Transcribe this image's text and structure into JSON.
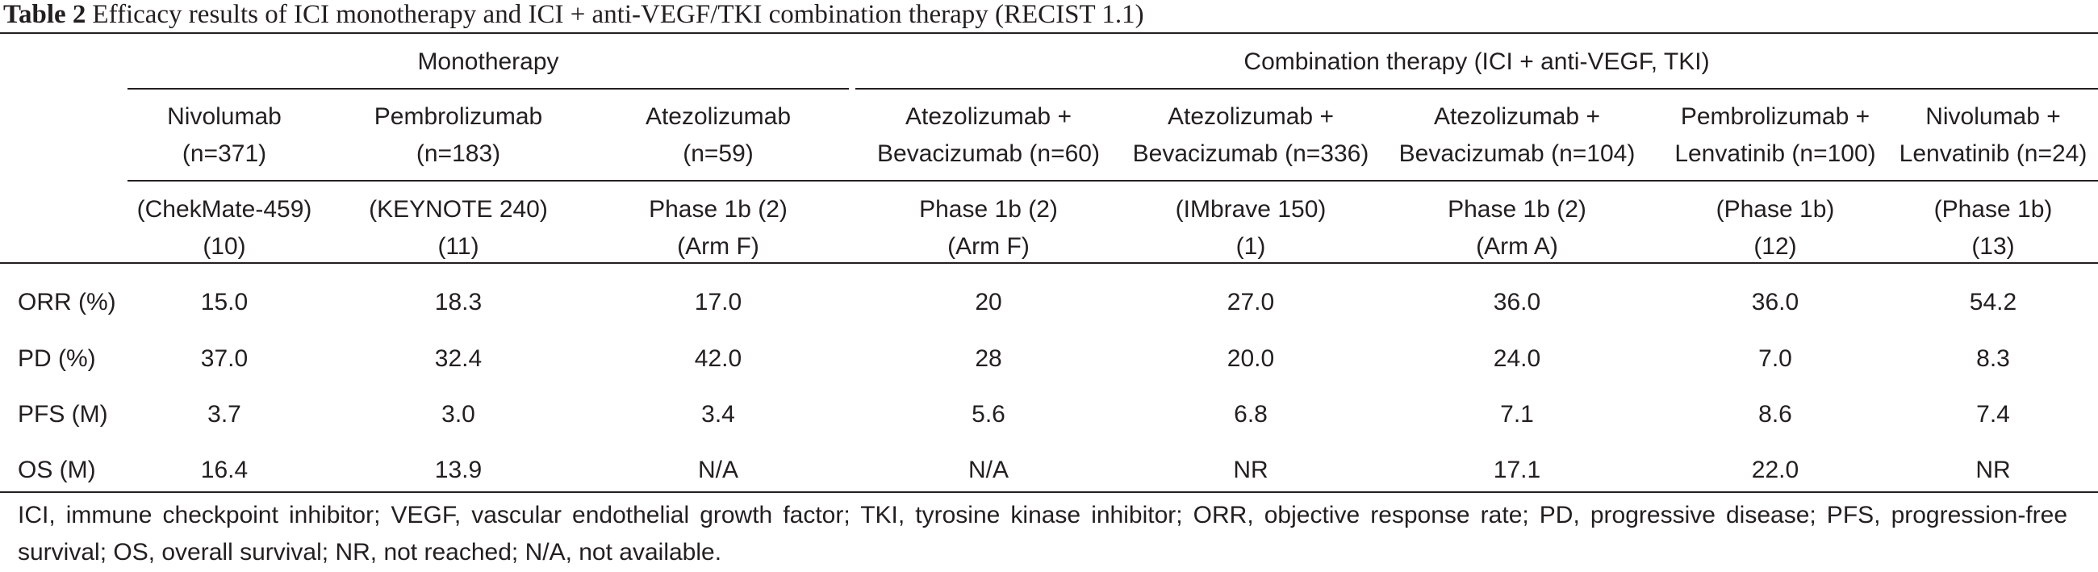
{
  "caption": {
    "label": "Table 2",
    "text": "Efficacy results of ICI monotherapy and ICI + anti-VEGF/TKI combination therapy (RECIST 1.1)"
  },
  "groups": {
    "monotherapy": "Monotherapy",
    "combination": "Combination therapy (ICI + anti-VEGF, TKI)"
  },
  "columns": [
    {
      "name": [
        "Nivolumab",
        "(n=371)"
      ],
      "trial": [
        "(ChekMate-459)",
        "(10)"
      ]
    },
    {
      "name": [
        "Pembrolizumab",
        "(n=183)"
      ],
      "trial": [
        "(KEYNOTE 240)",
        "(11)"
      ]
    },
    {
      "name": [
        "Atezolizumab",
        "(n=59)"
      ],
      "trial": [
        "Phase 1b (2)",
        "(Arm F)"
      ]
    },
    {
      "name": [
        "Atezolizumab +",
        "Bevacizumab (n=60)"
      ],
      "trial": [
        "Phase 1b (2)",
        "(Arm F)"
      ]
    },
    {
      "name": [
        "Atezolizumab +",
        "Bevacizumab (n=336)"
      ],
      "trial": [
        "(IMbrave 150)",
        "(1)"
      ]
    },
    {
      "name": [
        "Atezolizumab +",
        "Bevacizumab (n=104)"
      ],
      "trial": [
        "Phase 1b (2)",
        "(Arm A)"
      ]
    },
    {
      "name": [
        "Pembrolizumab +",
        "Lenvatinib (n=100)"
      ],
      "trial": [
        "(Phase 1b)",
        "(12)"
      ]
    },
    {
      "name": [
        "Nivolumab +",
        "Lenvatinib (n=24)"
      ],
      "trial": [
        "(Phase 1b)",
        "(13)"
      ]
    }
  ],
  "rows": [
    {
      "label": "ORR (%)",
      "values": [
        "15.0",
        "18.3",
        "17.0",
        "20",
        "27.0",
        "36.0",
        "36.0",
        "54.2"
      ]
    },
    {
      "label": "PD (%)",
      "values": [
        "37.0",
        "32.4",
        "42.0",
        "28",
        "20.0",
        "24.0",
        "7.0",
        "8.3"
      ]
    },
    {
      "label": "PFS (M)",
      "values": [
        "3.7",
        "3.0",
        "3.4",
        "5.6",
        "6.8",
        "7.1",
        "8.6",
        "7.4"
      ]
    },
    {
      "label": "OS (M)",
      "values": [
        "16.4",
        "13.9",
        "N/A",
        "N/A",
        "NR",
        "17.1",
        "22.0",
        "NR"
      ]
    }
  ],
  "footnote": "ICI, immune checkpoint inhibitor; VEGF, vascular endothelial growth factor; TKI, tyrosine kinase inhibitor; ORR, objective response rate; PD, progressive disease; PFS, progression-free survival; OS, overall survival; NR, not reached; N/A, not available."
}
